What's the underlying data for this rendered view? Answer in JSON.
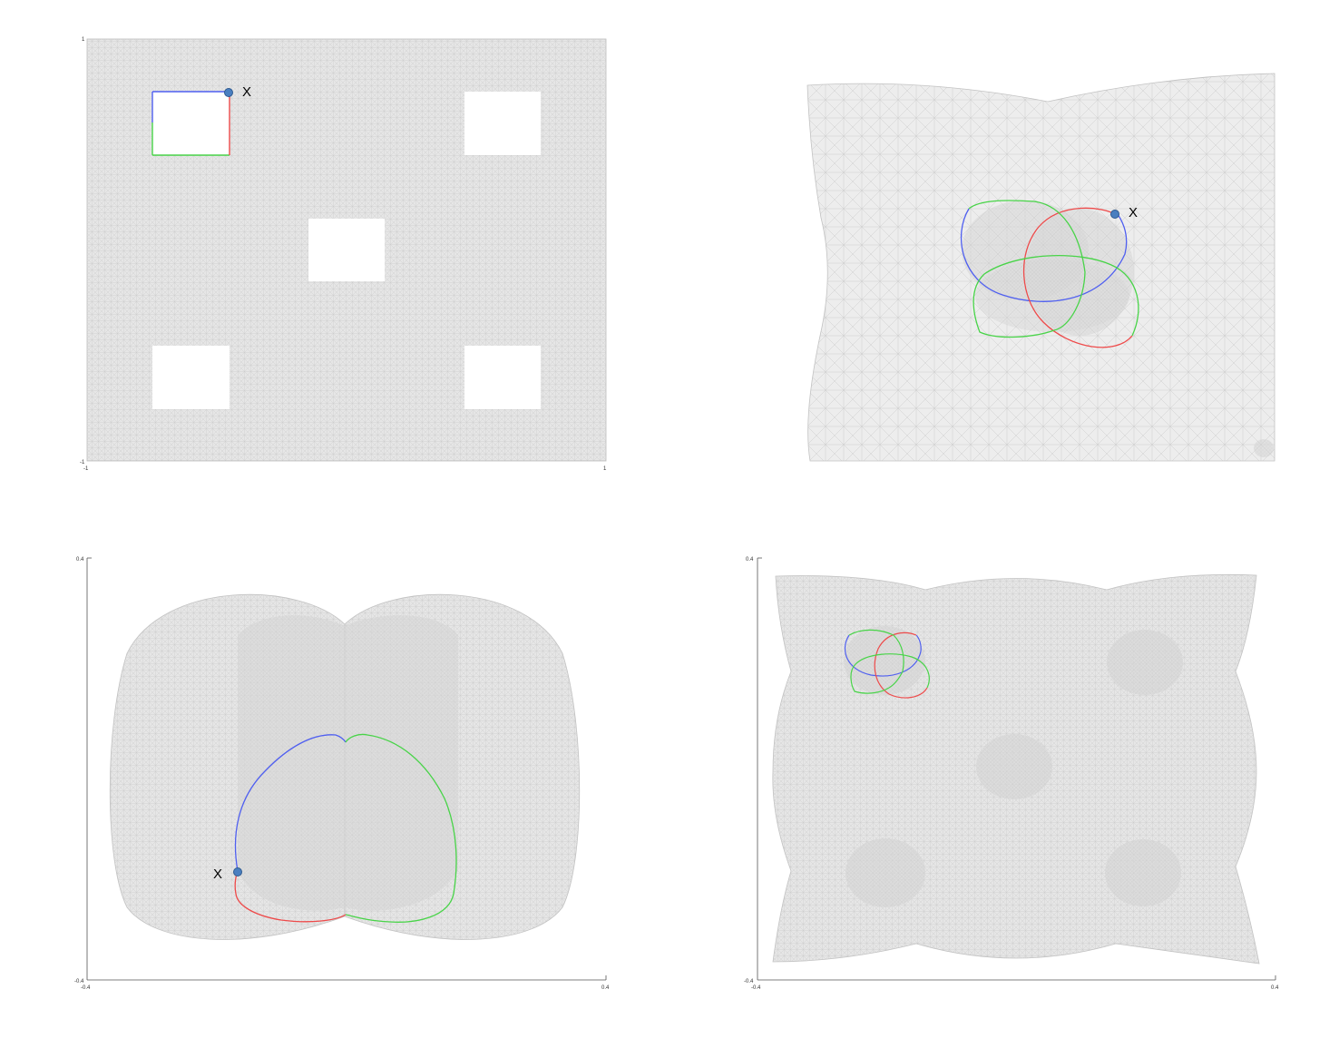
{
  "colors": {
    "mesh_fill": "#e6e6e6",
    "mesh_line": "#c6c6c6",
    "mesh_dense": "#d4d4d4",
    "axis": "#555555",
    "curve_blue": "#4f5ff0",
    "curve_red": "#ee4a4a",
    "curve_green": "#48d448",
    "marker": "#4a7fc0",
    "marker_edge": "#2e5a90"
  },
  "panels": {
    "top_left": {
      "ticks": {
        "x_min": "-1",
        "x_max": "1",
        "y_min": "-1",
        "y_max": "1"
      },
      "point_label": "X",
      "holes": 5
    },
    "top_right": {
      "point_label": "X"
    },
    "bottom_left": {
      "ticks": {
        "x_min": "-0.4",
        "x_max": "0.4",
        "y_min": "-0.4",
        "y_max": "0.4"
      },
      "point_label": "X"
    },
    "bottom_right": {
      "ticks": {
        "x_min": "-0.4",
        "x_max": "0.4",
        "y_min": "-0.4",
        "y_max": "0.4"
      }
    }
  }
}
